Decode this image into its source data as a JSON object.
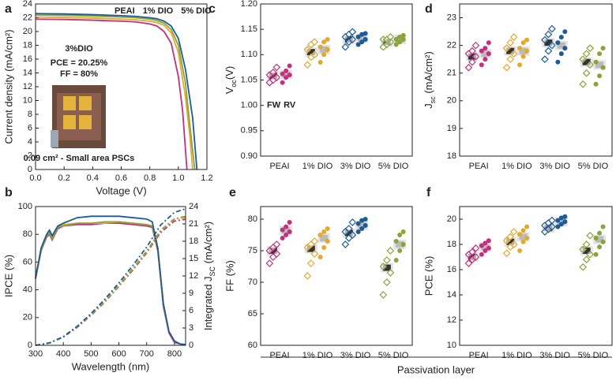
{
  "figure": {
    "xlabel": "Passivation layer"
  },
  "chart_data": [
    {
      "type": "line",
      "panel": "a",
      "xlabel": "Voltage (V)",
      "ylabel": "Current density (mA/cm²)",
      "xlim": [
        0,
        1.2
      ],
      "ylim": [
        0,
        24
      ],
      "xticks": [
        {
          "value": 0,
          "label": "0.0"
        },
        {
          "value": 0.2,
          "label": "0.2"
        },
        {
          "value": 0.4,
          "label": "0.4"
        },
        {
          "value": 0.6,
          "label": "0.6"
        },
        {
          "value": 0.8,
          "label": "0.8"
        },
        {
          "value": 1.0,
          "label": "1.0"
        },
        {
          "value": 1.2,
          "label": "1.2"
        }
      ],
      "yticks": [
        0,
        2,
        4,
        6,
        8,
        10,
        12,
        14,
        16,
        18,
        20,
        22,
        24
      ],
      "inset_series": 3,
      "annotations": [
        "PCE = 20.25%",
        "FF = 80%",
        "0.09 cm² - Small area PSCs"
      ],
      "series": [
        {
          "name": "PEAI",
          "color": "#c2317f",
          "x": [
            0,
            0.2,
            0.4,
            0.6,
            0.7,
            0.8,
            0.85,
            0.9,
            0.95,
            1.0,
            1.03,
            1.06
          ],
          "values": [
            21.8,
            21.75,
            21.65,
            21.5,
            21.4,
            21.1,
            20.8,
            20.0,
            18.3,
            13.5,
            8.5,
            0
          ]
        },
        {
          "name": "1% DIO",
          "color": "#e3a92e",
          "x": [
            0,
            0.2,
            0.4,
            0.6,
            0.7,
            0.8,
            0.85,
            0.9,
            0.95,
            1.0,
            1.05,
            1.08,
            1.1
          ],
          "values": [
            22.1,
            22.05,
            21.95,
            21.8,
            21.7,
            21.5,
            21.3,
            20.9,
            19.8,
            17.0,
            10.5,
            5.0,
            0
          ]
        },
        {
          "name": "5% DIO",
          "color": "#8aa43a",
          "x": [
            0,
            0.2,
            0.4,
            0.6,
            0.7,
            0.8,
            0.85,
            0.9,
            0.95,
            1.0,
            1.05,
            1.08,
            1.115
          ],
          "values": [
            22.4,
            22.35,
            22.25,
            22.1,
            22.0,
            21.8,
            21.6,
            21.2,
            20.3,
            18.0,
            12.5,
            6.5,
            0
          ]
        },
        {
          "name": "3%DIO",
          "color": "#1e5b96",
          "x": [
            0,
            0.2,
            0.4,
            0.6,
            0.7,
            0.8,
            0.85,
            0.9,
            0.95,
            1.0,
            1.05,
            1.1,
            1.13
          ],
          "values": [
            22.6,
            22.55,
            22.45,
            22.3,
            22.2,
            22.0,
            21.85,
            21.5,
            20.8,
            19.0,
            14.5,
            7.5,
            0
          ]
        }
      ]
    },
    {
      "type": "line",
      "panel": "b",
      "xlabel": "Wavelength (nm)",
      "ylabel": "IPCE (%)",
      "y2label": {
        "main": "Integrated J",
        "sub": "SC",
        "tail": " (mA/cm²)"
      },
      "xlim": [
        300,
        840
      ],
      "ylim": [
        0,
        100
      ],
      "y2lim": [
        0,
        24
      ],
      "xticks": [
        300,
        400,
        500,
        600,
        700,
        800
      ],
      "yticks": [
        0,
        20,
        40,
        60,
        80,
        100
      ],
      "y2ticks": [
        0,
        3,
        6,
        9,
        12,
        15,
        18,
        21,
        24
      ],
      "series": [
        {
          "color": "#c2317f",
          "x": [
            300,
            320,
            340,
            350,
            360,
            380,
            400,
            450,
            500,
            550,
            600,
            650,
            700,
            720,
            740,
            760,
            780,
            800,
            820,
            840
          ],
          "values": [
            48,
            68,
            78,
            80,
            76,
            84,
            86,
            87,
            87,
            88,
            88,
            87,
            86,
            85,
            68,
            28,
            9,
            2,
            1,
            0.5
          ]
        },
        {
          "color": "#e3a92e",
          "x": [
            300,
            320,
            340,
            350,
            360,
            380,
            400,
            450,
            500,
            550,
            600,
            650,
            700,
            720,
            740,
            760,
            780,
            800,
            820,
            840
          ],
          "values": [
            50,
            69,
            79,
            81,
            77,
            85,
            87,
            88,
            88,
            88,
            89,
            88,
            87,
            86,
            70,
            30,
            10,
            3,
            1,
            0.5
          ]
        },
        {
          "color": "#8aa43a",
          "x": [
            300,
            320,
            340,
            350,
            360,
            380,
            400,
            450,
            500,
            550,
            600,
            650,
            700,
            720,
            740,
            760,
            780,
            800,
            820,
            840
          ],
          "values": [
            49,
            68,
            79,
            81,
            77,
            85,
            86,
            88,
            88,
            89,
            89,
            88,
            87,
            86,
            69,
            29,
            10,
            3,
            1,
            0.5
          ]
        },
        {
          "color": "#1e5b96",
          "x": [
            300,
            320,
            340,
            350,
            360,
            380,
            400,
            450,
            500,
            550,
            600,
            650,
            700,
            720,
            740,
            760,
            780,
            800,
            820,
            840
          ],
          "values": [
            48,
            70,
            80,
            83,
            79,
            86,
            88,
            92,
            93,
            93,
            93,
            92,
            91,
            89,
            70,
            30,
            10,
            3,
            1,
            0.5
          ]
        },
        {
          "color": "#c2317f",
          "axis": "y2",
          "dash": true,
          "x": [
            300,
            350,
            400,
            450,
            500,
            550,
            600,
            650,
            700,
            750,
            800,
            840
          ],
          "values": [
            0,
            0.4,
            1.4,
            3.1,
            5.2,
            7.5,
            10.2,
            13.0,
            16.0,
            19.5,
            21.5,
            21.8
          ]
        },
        {
          "color": "#e3a92e",
          "axis": "y2",
          "dash": true,
          "x": [
            300,
            350,
            400,
            450,
            500,
            550,
            600,
            650,
            700,
            750,
            800,
            840
          ],
          "values": [
            0,
            0.4,
            1.4,
            3.2,
            5.3,
            7.6,
            10.3,
            13.2,
            16.2,
            19.8,
            21.8,
            22.1
          ]
        },
        {
          "color": "#8aa43a",
          "axis": "y2",
          "dash": true,
          "x": [
            300,
            350,
            400,
            450,
            500,
            550,
            600,
            650,
            700,
            750,
            800,
            840
          ],
          "values": [
            0,
            0.4,
            1.4,
            3.2,
            5.3,
            7.6,
            10.4,
            13.3,
            16.3,
            19.9,
            21.9,
            22.3
          ]
        },
        {
          "color": "#1e5b96",
          "axis": "y2",
          "dash": true,
          "x": [
            300,
            350,
            400,
            450,
            500,
            550,
            600,
            650,
            700,
            750,
            800,
            840
          ],
          "values": [
            0,
            0.4,
            1.5,
            3.3,
            5.5,
            8.0,
            10.8,
            13.8,
            17.0,
            20.8,
            23.0,
            23.6
          ]
        }
      ]
    },
    {
      "type": "strip",
      "panel": "c",
      "ylabel": {
        "main": "V",
        "sub": "oc",
        "tail": "(V)"
      },
      "categories": [
        "PEAI",
        "1% DIO",
        "3% DIO",
        "5% DIO"
      ],
      "colors": [
        "#c2317f",
        "#e3a92e",
        "#1e5b96",
        "#8aa43a"
      ],
      "ylim": [
        0.9,
        1.2
      ],
      "yticks": [
        {
          "value": 0.9,
          "label": "0.90"
        },
        {
          "value": 0.95,
          "label": "0.95"
        },
        {
          "value": 1.0,
          "label": "1.00"
        },
        {
          "value": 1.05,
          "label": "1.05"
        },
        {
          "value": 1.1,
          "label": "1.10"
        },
        {
          "value": 1.15,
          "label": "1.15"
        },
        {
          "value": 1.2,
          "label": "1.20"
        }
      ],
      "series": [
        {
          "name": "FW",
          "color": "#222222",
          "marker": "diamond",
          "mean_color": "#333333",
          "values": [
            [
              1.045,
              1.05,
              1.055,
              1.06,
              1.065,
              1.075
            ],
            [
              1.08,
              1.095,
              1.1,
              1.11,
              1.12,
              1.125
            ],
            [
              1.115,
              1.125,
              1.13,
              1.135,
              1.14,
              1.145
            ],
            [
              1.115,
              1.12,
              1.125,
              1.13,
              1.13,
              1.135
            ]
          ],
          "means": [
            1.058,
            1.105,
            1.13,
            1.125
          ]
        },
        {
          "name": "RV",
          "color": "#999999",
          "marker": "circle",
          "mean_color": "#bbbbbb",
          "values": [
            [
              1.045,
              1.055,
              1.06,
              1.062,
              1.068,
              1.078
            ],
            [
              1.085,
              1.1,
              1.11,
              1.115,
              1.125,
              1.13
            ],
            [
              1.12,
              1.125,
              1.13,
              1.135,
              1.14,
              1.142
            ],
            [
              1.12,
              1.125,
              1.13,
              1.13,
              1.135,
              1.138
            ]
          ],
          "means": [
            1.061,
            1.11,
            1.132,
            1.13
          ]
        }
      ]
    },
    {
      "type": "strip",
      "panel": "d",
      "ylabel": {
        "main": "J",
        "sub": "sc",
        "tail": " (mA/cm²)"
      },
      "categories": [
        "PEAI",
        "1% DIO",
        "3% DIO",
        "5% DIO"
      ],
      "colors": [
        "#c2317f",
        "#e3a92e",
        "#1e5b96",
        "#8aa43a"
      ],
      "ylim": [
        18,
        23.5
      ],
      "yticks": [
        18,
        19,
        20,
        21,
        22,
        23
      ],
      "series": [
        {
          "marker": "diamond",
          "mean_color": "#333333",
          "values": [
            [
              21.2,
              21.4,
              21.6,
              21.7,
              21.8,
              22.0
            ],
            [
              21.2,
              21.5,
              21.7,
              21.9,
              22.1,
              22.3
            ],
            [
              21.5,
              21.8,
              22.0,
              22.2,
              22.4,
              22.6
            ],
            [
              20.6,
              21.0,
              21.3,
              21.5,
              21.7,
              21.9
            ]
          ],
          "means": [
            21.6,
            21.8,
            22.1,
            21.4
          ]
        },
        {
          "marker": "circle",
          "mean_color": "#bbbbbb",
          "values": [
            [
              21.3,
              21.5,
              21.7,
              21.8,
              21.9,
              22.1
            ],
            [
              21.3,
              21.6,
              21.8,
              21.9,
              22.1,
              22.2
            ],
            [
              21.4,
              21.7,
              21.9,
              22.1,
              22.3,
              22.5
            ],
            [
              20.6,
              20.9,
              21.2,
              21.4,
              21.7,
              21.9
            ]
          ],
          "means": [
            21.7,
            21.8,
            22.0,
            21.3
          ]
        }
      ]
    },
    {
      "type": "strip",
      "panel": "e",
      "ylabel": "FF (%)",
      "categories": [
        "PEAI",
        "1% DIO",
        "3% DIO",
        "5% DIO"
      ],
      "colors": [
        "#c2317f",
        "#e3a92e",
        "#1e5b96",
        "#8aa43a"
      ],
      "ylim": [
        60,
        82
      ],
      "yticks": [
        60,
        65,
        70,
        75,
        80
      ],
      "series": [
        {
          "marker": "diamond",
          "mean_color": "#333333",
          "values": [
            [
              73,
              74,
              74.5,
              75,
              75.5,
              76
            ],
            [
              71,
              73,
              74.5,
              75.5,
              76,
              76.5
            ],
            [
              76,
              77,
              77.5,
              78,
              78.5,
              79.5
            ],
            [
              68,
              70,
              71.5,
              72.5,
              73.5,
              75
            ]
          ],
          "means": [
            75,
            75.3,
            77.8,
            72.3
          ]
        },
        {
          "marker": "circle",
          "mean_color": "#bbbbbb",
          "values": [
            [
              77,
              77.5,
              78,
              78.3,
              78.8,
              79.5
            ],
            [
              74,
              75.5,
              76.5,
              77.5,
              78,
              78.5
            ],
            [
              78,
              78.5,
              79,
              79.3,
              79.8,
              80
            ],
            [
              73.5,
              75,
              76,
              76.5,
              77.5,
              78
            ]
          ],
          "means": [
            78.2,
            77,
            79,
            76
          ]
        }
      ]
    },
    {
      "type": "strip",
      "panel": "f",
      "ylabel": "PCE (%)",
      "categories": [
        "PEAI",
        "1% DIO",
        "3% DIO",
        "5% DIO"
      ],
      "colors": [
        "#c2317f",
        "#e3a92e",
        "#1e5b96",
        "#8aa43a"
      ],
      "ylim": [
        10,
        21
      ],
      "yticks": [
        10,
        12,
        14,
        16,
        18,
        20
      ],
      "series": [
        {
          "marker": "diamond",
          "mean_color": "#333333",
          "values": [
            [
              16.5,
              16.8,
              17.0,
              17.2,
              17.4,
              17.7
            ],
            [
              17.3,
              17.8,
              18.0,
              18.3,
              18.6,
              19.0
            ],
            [
              19.0,
              19.2,
              19.4,
              19.5,
              19.7,
              19.9
            ],
            [
              16.2,
              16.8,
              17.2,
              17.6,
              18.0,
              18.7
            ]
          ],
          "means": [
            17.0,
            18.2,
            19.3,
            17.5
          ]
        },
        {
          "marker": "circle",
          "mean_color": "#bbbbbb",
          "values": [
            [
              17.2,
              17.5,
              17.7,
              17.9,
              18.1,
              18.3
            ],
            [
              17.5,
              18.2,
              18.5,
              18.8,
              19.1,
              19.4
            ],
            [
              19.4,
              19.6,
              19.8,
              19.9,
              20.1,
              20.2
            ],
            [
              17.2,
              17.8,
              18.2,
              18.5,
              18.9,
              19.4
            ]
          ],
          "means": [
            17.8,
            18.6,
            19.8,
            18.4
          ]
        }
      ]
    }
  ]
}
